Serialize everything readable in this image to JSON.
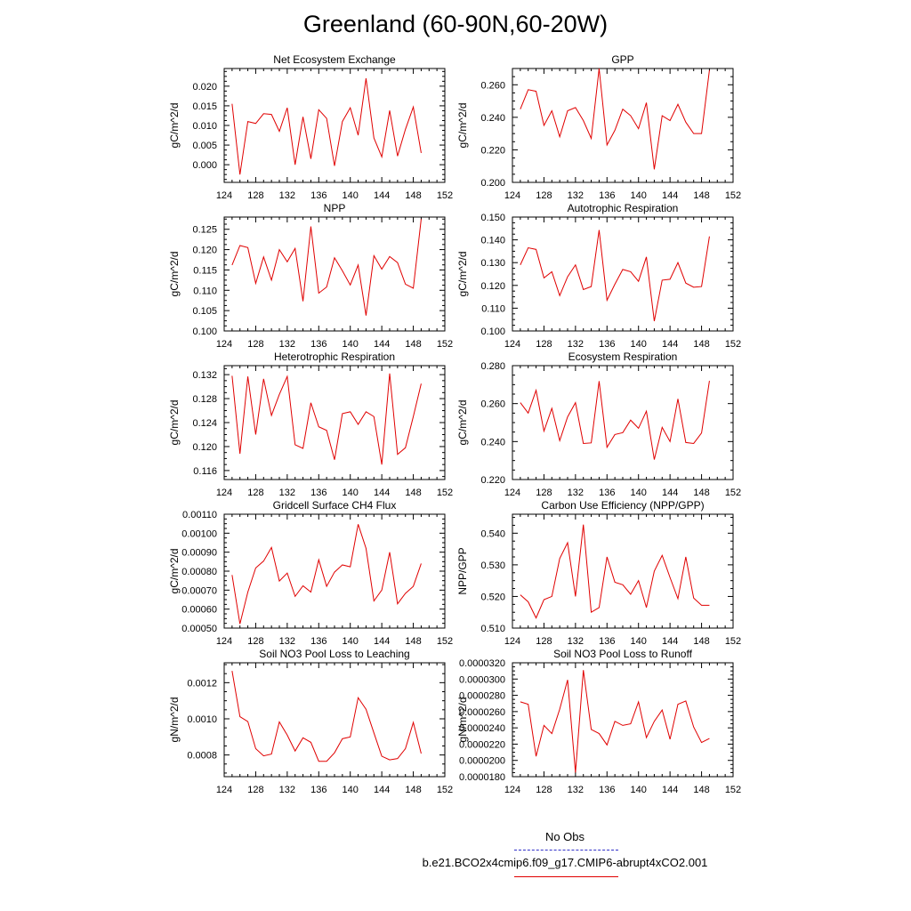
{
  "title": "Greenland (60-90N,60-20W)",
  "legend": {
    "title": "No Obs",
    "model_label": "b.e21.BCO2x4cmip6.f09_g17.CMIP6-abrupt4xCO2.001",
    "obs_color": "#3030c8",
    "model_color": "#e00000"
  },
  "chart_data": [
    {
      "type": "line",
      "title": "Net Ecosystem Exchange",
      "ylabel": "gC/m^2/d",
      "xlim": [
        124,
        152
      ],
      "ylim": [
        -0.0045,
        0.0245
      ],
      "decimals": 3,
      "xticks": [
        124,
        128,
        132,
        136,
        140,
        144,
        148,
        152
      ],
      "yticks": [
        0.0,
        0.005,
        0.01,
        0.015,
        0.02
      ],
      "x": [
        125,
        126,
        127,
        128,
        129,
        130,
        131,
        132,
        133,
        134,
        135,
        136,
        137,
        138,
        139,
        140,
        141,
        142,
        143,
        144,
        145,
        146,
        147,
        148,
        149
      ],
      "series": [
        {
          "color": "#e00000",
          "values": [
            0.0155,
            -0.0025,
            0.011,
            0.0105,
            0.013,
            0.0128,
            0.0085,
            0.0145,
            0.0,
            0.0122,
            0.0015,
            0.014,
            0.0118,
            -0.0003,
            0.011,
            0.0145,
            0.0075,
            0.022,
            0.0068,
            0.002,
            0.0138,
            0.0022,
            0.009,
            0.0147,
            0.003
          ]
        }
      ]
    },
    {
      "type": "line",
      "title": "GPP",
      "ylabel": "gC/m^2/d",
      "xlim": [
        124,
        152
      ],
      "ylim": [
        0.2,
        0.27
      ],
      "decimals": 3,
      "xticks": [
        124,
        128,
        132,
        136,
        140,
        144,
        148,
        152
      ],
      "yticks": [
        0.2,
        0.22,
        0.24,
        0.26
      ],
      "x": [
        125,
        126,
        127,
        128,
        129,
        130,
        131,
        132,
        133,
        134,
        135,
        136,
        137,
        138,
        139,
        140,
        141,
        142,
        143,
        144,
        145,
        146,
        147,
        148,
        149
      ],
      "series": [
        {
          "color": "#e00000",
          "values": [
            0.245,
            0.257,
            0.256,
            0.235,
            0.244,
            0.228,
            0.244,
            0.246,
            0.238,
            0.227,
            0.27,
            0.223,
            0.232,
            0.245,
            0.241,
            0.233,
            0.249,
            0.208,
            0.241,
            0.238,
            0.248,
            0.237,
            0.23,
            0.23,
            0.269
          ]
        }
      ]
    },
    {
      "type": "line",
      "title": "NPP",
      "ylabel": "gC/m^2/d",
      "xlim": [
        124,
        152
      ],
      "ylim": [
        0.1,
        0.128
      ],
      "decimals": 3,
      "xticks": [
        124,
        128,
        132,
        136,
        140,
        144,
        148,
        152
      ],
      "yticks": [
        0.1,
        0.105,
        0.11,
        0.115,
        0.12,
        0.125
      ],
      "x": [
        125,
        126,
        127,
        128,
        129,
        130,
        131,
        132,
        133,
        134,
        135,
        136,
        137,
        138,
        139,
        140,
        141,
        142,
        143,
        144,
        145,
        146,
        147,
        148,
        149
      ],
      "series": [
        {
          "color": "#e00000",
          "values": [
            0.1162,
            0.121,
            0.1205,
            0.1117,
            0.1182,
            0.1125,
            0.12,
            0.117,
            0.1203,
            0.1073,
            0.1257,
            0.1093,
            0.1108,
            0.118,
            0.1148,
            0.1113,
            0.1162,
            0.1038,
            0.1185,
            0.1152,
            0.1183,
            0.1168,
            0.1115,
            0.1105,
            0.1275
          ]
        }
      ]
    },
    {
      "type": "line",
      "title": "Autotrophic Respiration",
      "ylabel": "gC/m^2/d",
      "xlim": [
        124,
        152
      ],
      "ylim": [
        0.1,
        0.15
      ],
      "decimals": 3,
      "xticks": [
        124,
        128,
        132,
        136,
        140,
        144,
        148,
        152
      ],
      "yticks": [
        0.1,
        0.11,
        0.12,
        0.13,
        0.14,
        0.15
      ],
      "x": [
        125,
        126,
        127,
        128,
        129,
        130,
        131,
        132,
        133,
        134,
        135,
        136,
        137,
        138,
        139,
        140,
        141,
        142,
        143,
        144,
        145,
        146,
        147,
        148,
        149
      ],
      "series": [
        {
          "color": "#e00000",
          "values": [
            0.129,
            0.1365,
            0.1358,
            0.1233,
            0.126,
            0.1155,
            0.1238,
            0.129,
            0.1182,
            0.1195,
            0.1443,
            0.1135,
            0.1205,
            0.127,
            0.126,
            0.1218,
            0.1325,
            0.1043,
            0.1223,
            0.1227,
            0.13,
            0.121,
            0.1192,
            0.1195,
            0.1415
          ]
        }
      ]
    },
    {
      "type": "line",
      "title": "Heterotrophic Respiration",
      "ylabel": "gC/m^2/d",
      "xlim": [
        124,
        152
      ],
      "ylim": [
        0.1145,
        0.1335
      ],
      "decimals": 3,
      "xticks": [
        124,
        128,
        132,
        136,
        140,
        144,
        148,
        152
      ],
      "yticks": [
        0.116,
        0.12,
        0.124,
        0.128,
        0.132
      ],
      "x": [
        125,
        126,
        127,
        128,
        129,
        130,
        131,
        132,
        133,
        134,
        135,
        136,
        137,
        138,
        139,
        140,
        141,
        142,
        143,
        144,
        145,
        146,
        147,
        148,
        149
      ],
      "series": [
        {
          "color": "#e00000",
          "values": [
            0.1318,
            0.1188,
            0.1317,
            0.122,
            0.1313,
            0.1252,
            0.1287,
            0.1317,
            0.1203,
            0.1197,
            0.1273,
            0.1233,
            0.1227,
            0.1178,
            0.1255,
            0.1258,
            0.1237,
            0.1258,
            0.125,
            0.117,
            0.1322,
            0.1187,
            0.1198,
            0.125,
            0.1305
          ]
        }
      ]
    },
    {
      "type": "line",
      "title": "Ecosystem Respiration",
      "ylabel": "gC/m^2/d",
      "xlim": [
        124,
        152
      ],
      "ylim": [
        0.22,
        0.28
      ],
      "decimals": 3,
      "xticks": [
        124,
        128,
        132,
        136,
        140,
        144,
        148,
        152
      ],
      "yticks": [
        0.22,
        0.24,
        0.26,
        0.28
      ],
      "x": [
        125,
        126,
        127,
        128,
        129,
        130,
        131,
        132,
        133,
        134,
        135,
        136,
        137,
        138,
        139,
        140,
        141,
        142,
        143,
        144,
        145,
        146,
        147,
        148,
        149
      ],
      "series": [
        {
          "color": "#e00000",
          "values": [
            0.2605,
            0.255,
            0.267,
            0.2455,
            0.2575,
            0.2405,
            0.253,
            0.2605,
            0.239,
            0.2393,
            0.2718,
            0.237,
            0.2437,
            0.2447,
            0.2513,
            0.247,
            0.256,
            0.2305,
            0.2475,
            0.24,
            0.2625,
            0.2395,
            0.239,
            0.2445,
            0.272
          ]
        }
      ]
    },
    {
      "type": "line",
      "title": "Gridcell Surface CH4 Flux",
      "ylabel": "gC/m^2/d",
      "xlim": [
        124,
        152
      ],
      "ylim": [
        0.0005,
        0.0011
      ],
      "decimals": 5,
      "xticks": [
        124,
        128,
        132,
        136,
        140,
        144,
        148,
        152
      ],
      "yticks": [
        0.0005,
        0.0006,
        0.0007,
        0.0008,
        0.0009,
        0.001,
        0.0011
      ],
      "x": [
        125,
        126,
        127,
        128,
        129,
        130,
        131,
        132,
        133,
        134,
        135,
        136,
        137,
        138,
        139,
        140,
        141,
        142,
        143,
        144,
        145,
        146,
        147,
        148,
        149
      ],
      "series": [
        {
          "color": "#e00000",
          "values": [
            0.00078,
            0.000522,
            0.00069,
            0.000817,
            0.000853,
            0.000925,
            0.000748,
            0.00079,
            0.000667,
            0.000723,
            0.00069,
            0.00086,
            0.00072,
            0.000795,
            0.000833,
            0.000823,
            0.001047,
            0.00092,
            0.000643,
            0.0007,
            0.0009,
            0.000628,
            0.000683,
            0.00072,
            0.00084
          ]
        }
      ]
    },
    {
      "type": "line",
      "title": "Carbon Use Efficiency (NPP/GPP)",
      "ylabel": "NPP/GPP",
      "xlim": [
        124,
        152
      ],
      "ylim": [
        0.51,
        0.546
      ],
      "decimals": 3,
      "xticks": [
        124,
        128,
        132,
        136,
        140,
        144,
        148,
        152
      ],
      "yticks": [
        0.51,
        0.52,
        0.53,
        0.54
      ],
      "x": [
        125,
        126,
        127,
        128,
        129,
        130,
        131,
        132,
        133,
        134,
        135,
        136,
        137,
        138,
        139,
        140,
        141,
        142,
        143,
        144,
        145,
        146,
        147,
        148,
        149
      ],
      "series": [
        {
          "color": "#e00000",
          "values": [
            0.5205,
            0.5183,
            0.5132,
            0.519,
            0.52,
            0.532,
            0.537,
            0.52,
            0.5427,
            0.515,
            0.5165,
            0.5325,
            0.5245,
            0.5237,
            0.5207,
            0.525,
            0.5165,
            0.528,
            0.533,
            0.526,
            0.5193,
            0.5325,
            0.5195,
            0.5172,
            0.5172
          ]
        }
      ]
    },
    {
      "type": "line",
      "title": "Soil NO3 Pool Loss to Leaching",
      "ylabel": "gN/m^2/d",
      "xlim": [
        124,
        152
      ],
      "ylim": [
        0.00068,
        0.00131
      ],
      "decimals": 4,
      "xticks": [
        124,
        128,
        132,
        136,
        140,
        144,
        148,
        152
      ],
      "yticks": [
        0.0008,
        0.001,
        0.0012
      ],
      "x": [
        125,
        126,
        127,
        128,
        129,
        130,
        131,
        132,
        133,
        134,
        135,
        136,
        137,
        138,
        139,
        140,
        141,
        142,
        143,
        144,
        145,
        146,
        147,
        148,
        149
      ],
      "series": [
        {
          "color": "#e00000",
          "values": [
            0.001265,
            0.001012,
            0.000985,
            0.000835,
            0.000795,
            0.000805,
            0.000983,
            0.00091,
            0.000822,
            0.000895,
            0.00087,
            0.000765,
            0.000765,
            0.000812,
            0.00089,
            0.0009,
            0.001117,
            0.001053,
            0.000922,
            0.000793,
            0.000773,
            0.00078,
            0.000835,
            0.00098,
            0.000808
          ]
        }
      ]
    },
    {
      "type": "line",
      "title": "Soil NO3 Pool Loss to Runoff",
      "ylabel": "gN/m^2/d",
      "xlim": [
        124,
        152
      ],
      "ylim": [
        1.8e-05,
        3.2e-05
      ],
      "decimals": 7,
      "xticks": [
        124,
        128,
        132,
        136,
        140,
        144,
        148,
        152
      ],
      "yticks": [
        1.8e-05,
        2e-05,
        2.2e-05,
        2.4e-05,
        2.6e-05,
        2.8e-05,
        3e-05,
        3.2e-05
      ],
      "x": [
        125,
        126,
        127,
        128,
        129,
        130,
        131,
        132,
        133,
        134,
        135,
        136,
        137,
        138,
        139,
        140,
        141,
        142,
        143,
        144,
        145,
        146,
        147,
        148,
        149
      ],
      "series": [
        {
          "color": "#e00000",
          "values": [
            2.72e-05,
            2.69e-05,
            2.05e-05,
            2.43e-05,
            2.33e-05,
            2.63e-05,
            2.99e-05,
            1.85e-05,
            3.11e-05,
            2.38e-05,
            2.33e-05,
            2.19e-05,
            2.48e-05,
            2.43e-05,
            2.45e-05,
            2.72e-05,
            2.28e-05,
            2.48e-05,
            2.62e-05,
            2.26e-05,
            2.69e-05,
            2.73e-05,
            2.41e-05,
            2.22e-05,
            2.27e-05
          ]
        }
      ]
    }
  ]
}
